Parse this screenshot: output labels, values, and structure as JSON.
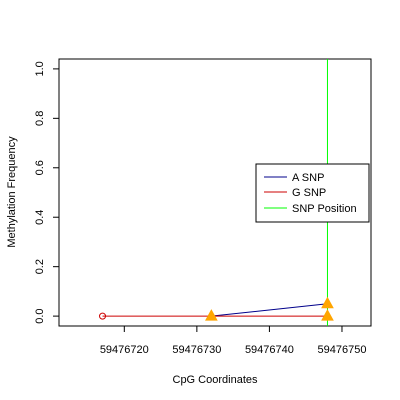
{
  "chart_data": {
    "type": "line",
    "xlabel": "CpG Coordinates",
    "ylabel": "Methylation Frequency",
    "xlim": [
      59476711,
      59476754
    ],
    "ylim": [
      -0.04,
      1.04
    ],
    "x_ticks": [
      {
        "value": 59476720,
        "label": "59476720"
      },
      {
        "value": 59476730,
        "label": "59476730"
      },
      {
        "value": 59476740,
        "label": "59476740"
      },
      {
        "value": 59476750,
        "label": "59476750"
      }
    ],
    "y_ticks": [
      {
        "value": 0.0,
        "label": "0.0"
      },
      {
        "value": 0.2,
        "label": "0.2"
      },
      {
        "value": 0.4,
        "label": "0.4"
      },
      {
        "value": 0.6,
        "label": "0.6"
      },
      {
        "value": 0.8,
        "label": "0.8"
      },
      {
        "value": 1.0,
        "label": "1.0"
      }
    ],
    "legend_position": "right",
    "grid": false,
    "series": [
      {
        "name": "A SNP",
        "color": "#00008B",
        "points": [
          {
            "x": 59476732,
            "y": 0.0
          },
          {
            "x": 59476748,
            "y": 0.05
          }
        ]
      },
      {
        "name": "G SNP",
        "color": "#CD0000",
        "points": [
          {
            "x": 59476717,
            "y": 0.0
          },
          {
            "x": 59476732,
            "y": 0.0
          },
          {
            "x": 59476748,
            "y": 0.0
          }
        ]
      }
    ],
    "snp_marker": {
      "name": "SNP Position",
      "color": "#00FF00",
      "x": 59476748
    },
    "open_circles": [
      {
        "x": 59476717,
        "y": 0.0,
        "color": "#CD0000"
      }
    ],
    "triangles": [
      {
        "x": 59476732,
        "y": 0.0,
        "color": "#FFA500"
      },
      {
        "x": 59476748,
        "y": 0.05,
        "color": "#FFA500"
      },
      {
        "x": 59476748,
        "y": 0.0,
        "color": "#FFA500"
      }
    ]
  }
}
